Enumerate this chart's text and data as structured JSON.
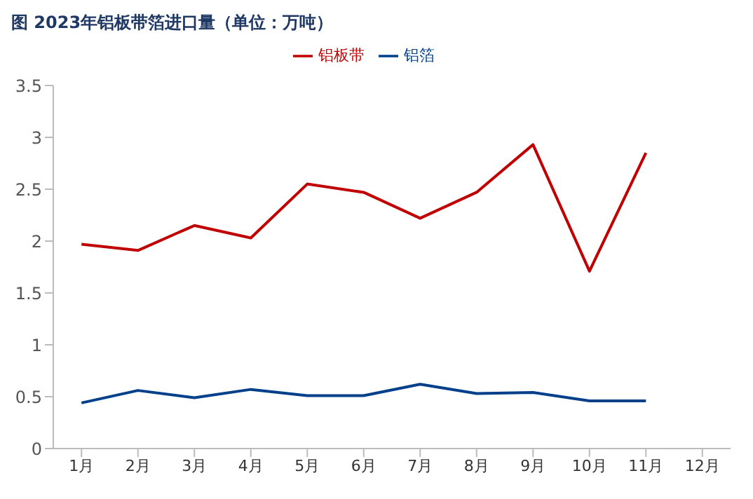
{
  "chart_data": {
    "type": "line",
    "title": "图 2023年铝板带箔进口量（单位：万吨）",
    "categories": [
      "1月",
      "2月",
      "3月",
      "4月",
      "5月",
      "6月",
      "7月",
      "8月",
      "9月",
      "10月",
      "11月",
      "12月"
    ],
    "series": [
      {
        "name": "铝板带",
        "color": "#c00000",
        "values": [
          1.97,
          1.91,
          2.15,
          2.03,
          2.55,
          2.47,
          2.22,
          2.47,
          2.93,
          1.71,
          2.85,
          null
        ]
      },
      {
        "name": "铝箔",
        "color": "#003f8a",
        "values": [
          0.44,
          0.56,
          0.49,
          0.57,
          0.51,
          0.51,
          0.62,
          0.53,
          0.54,
          0.46,
          0.46,
          null
        ]
      }
    ],
    "ylim": [
      0,
      3.5
    ],
    "yticks": [
      0,
      0.5,
      1,
      1.5,
      2,
      2.5,
      3,
      3.5
    ],
    "grid": false,
    "legend": "top",
    "marker": "none",
    "line_style": "solid"
  }
}
